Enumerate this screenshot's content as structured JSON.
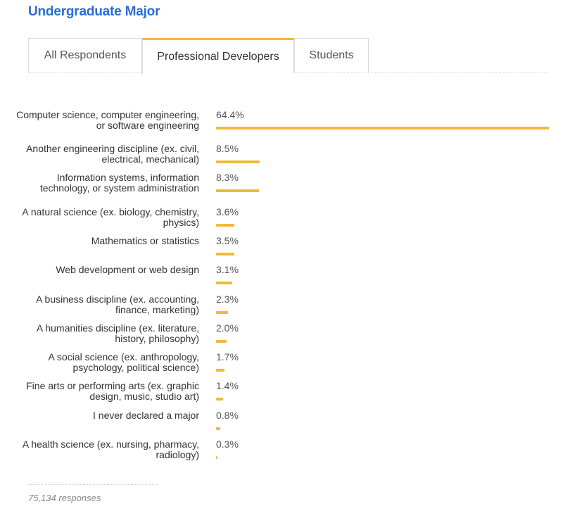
{
  "header": {
    "title": "Undergraduate Major"
  },
  "tabs": [
    {
      "label": "All Respondents",
      "active": false
    },
    {
      "label": "Professional Developers",
      "active": true
    },
    {
      "label": "Students",
      "active": false
    }
  ],
  "colors": {
    "accent": "#f2b93a",
    "title": "#2b6cd4"
  },
  "chart_data": {
    "type": "bar",
    "orientation": "horizontal",
    "categories": [
      "Computer science, computer engineering, or software engineering",
      "Another engineering discipline (ex. civil, electrical, mechanical)",
      "Information systems, information technology, or system administration",
      "A natural science (ex. biology, chemistry, physics)",
      "Mathematics or statistics",
      "Web development or web design",
      "A business discipline (ex. accounting, finance, marketing)",
      "A humanities discipline (ex. literature, history, philosophy)",
      "A social science (ex. anthropology, psychology, political science)",
      "Fine arts or performing arts (ex. graphic design, music, studio art)",
      "I never declared a major",
      "A health science (ex. nursing, pharmacy, radiology)"
    ],
    "values": [
      64.4,
      8.5,
      8.3,
      3.6,
      3.5,
      3.1,
      2.3,
      2.0,
      1.7,
      1.4,
      0.8,
      0.3
    ],
    "value_labels": [
      "64.4%",
      "8.5%",
      "8.3%",
      "3.6%",
      "3.5%",
      "3.1%",
      "2.3%",
      "2.0%",
      "1.7%",
      "1.4%",
      "0.8%",
      "0.3%"
    ],
    "unit": "%",
    "xlim": [
      0,
      64.4
    ],
    "grid": false,
    "title": "",
    "xlabel": "",
    "ylabel": ""
  },
  "footer": {
    "responses": "75,134 responses"
  }
}
